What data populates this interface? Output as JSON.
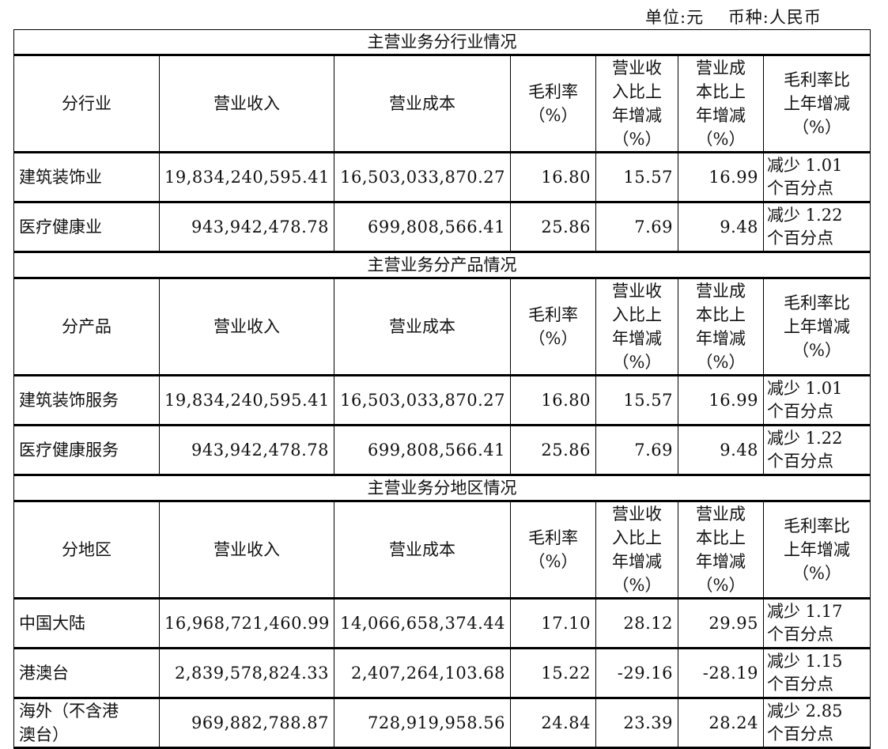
{
  "unit_note": "单位:元    币种:人民币",
  "header_columns": [
    [
      "营业收入"
    ],
    [
      "营业成本"
    ],
    [
      "毛利率",
      "（%）"
    ],
    [
      "营业收",
      "入比上",
      "年增减",
      "（%）"
    ],
    [
      "营业成",
      "本比上",
      "年增减",
      "（%）"
    ],
    [
      "毛利率比",
      "上年增减",
      "（%）"
    ]
  ],
  "sections": [
    {
      "title": "主营业务分行业情况",
      "first_header": "分行业",
      "rows": [
        {
          "label": [
            "建筑装饰业"
          ],
          "revenue": "19,834,240,595.41",
          "cost": "16,503,033,870.27",
          "margin": "16.80",
          "rev_change": "15.57",
          "cost_change": "16.99",
          "margin_change": [
            "减少 1.01",
            "个百分点"
          ]
        },
        {
          "label": [
            "医疗健康业"
          ],
          "revenue": "943,942,478.78",
          "cost": "699,808,566.41",
          "margin": "25.86",
          "rev_change": "7.69",
          "cost_change": "9.48",
          "margin_change": [
            "减少 1.22",
            "个百分点"
          ]
        }
      ]
    },
    {
      "title": "主营业务分产品情况",
      "first_header": "分产品",
      "rows": [
        {
          "label": [
            "建筑装饰服务"
          ],
          "revenue": "19,834,240,595.41",
          "cost": "16,503,033,870.27",
          "margin": "16.80",
          "rev_change": "15.57",
          "cost_change": "16.99",
          "margin_change": [
            "减少 1.01",
            "个百分点"
          ]
        },
        {
          "label": [
            "医疗健康服务"
          ],
          "revenue": "943,942,478.78",
          "cost": "699,808,566.41",
          "margin": "25.86",
          "rev_change": "7.69",
          "cost_change": "9.48",
          "margin_change": [
            "减少 1.22",
            "个百分点"
          ]
        }
      ]
    },
    {
      "title": "主营业务分地区情况",
      "first_header": "分地区",
      "rows": [
        {
          "label": [
            "中国大陆"
          ],
          "revenue": "16,968,721,460.99",
          "cost": "14,066,658,374.44",
          "margin": "17.10",
          "rev_change": "28.12",
          "cost_change": "29.95",
          "margin_change": [
            "减少 1.17",
            "个百分点"
          ]
        },
        {
          "label": [
            "港澳台"
          ],
          "revenue": "2,839,578,824.33",
          "cost": "2,407,264,103.68",
          "margin": "15.22",
          "rev_change": "-29.16",
          "cost_change": "-28.19",
          "margin_change": [
            "减少 1.15",
            "个百分点"
          ]
        },
        {
          "label": [
            "海外（不含港",
            "澳台）"
          ],
          "revenue": "969,882,788.87",
          "cost": "728,919,958.56",
          "margin": "24.84",
          "rev_change": "23.39",
          "cost_change": "28.24",
          "margin_change": [
            "减少 2.85",
            "个百分点"
          ]
        }
      ]
    }
  ]
}
